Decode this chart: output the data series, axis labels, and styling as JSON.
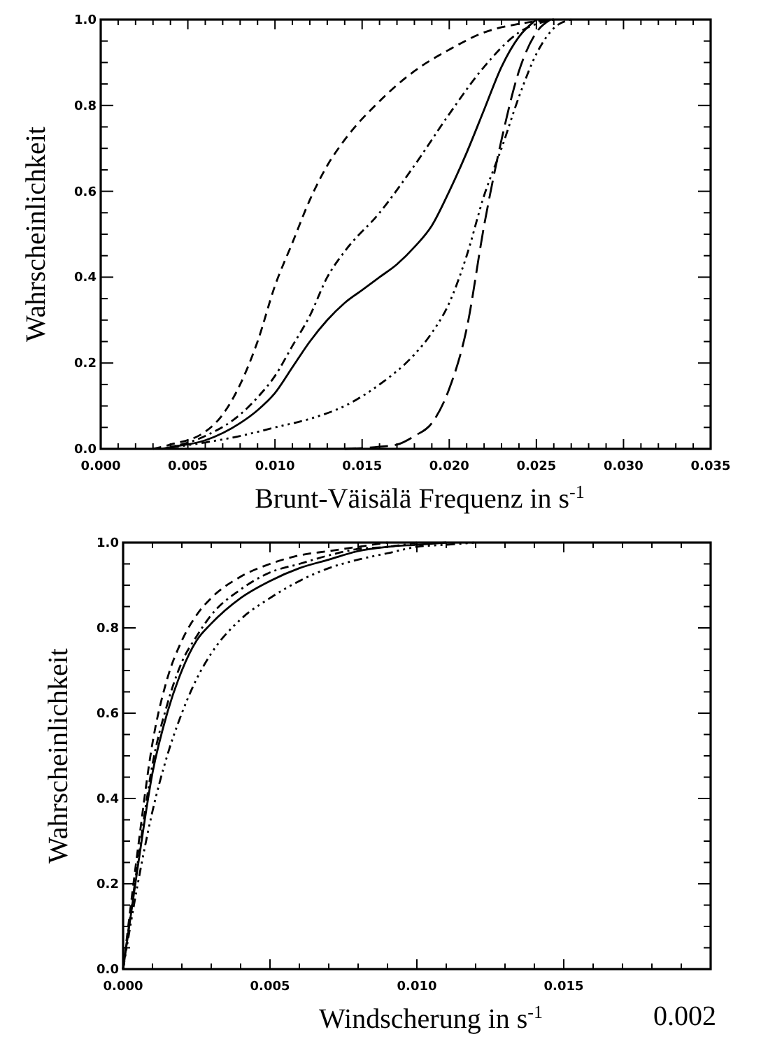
{
  "chart_data": [
    {
      "type": "line",
      "xlabel": "Brunt-Väisälä Frequenz in s$^{-1}$",
      "ylabel": "Wahrscheinlichkeit",
      "xlim": [
        0,
        0.035
      ],
      "ylim": [
        0,
        1
      ],
      "xticks": [
        {
          "value": 0,
          "label": "0.000"
        },
        {
          "value": 0.001,
          "label": null
        },
        {
          "value": 0.002,
          "label": null
        },
        {
          "value": 0.003,
          "label": null
        },
        {
          "value": 0.004,
          "label": null
        },
        {
          "value": 0.005,
          "label": "0.005"
        },
        {
          "value": 0.006,
          "label": null
        },
        {
          "value": 0.007,
          "label": null
        },
        {
          "value": 0.008,
          "label": null
        },
        {
          "value": 0.009,
          "label": null
        },
        {
          "value": 0.01,
          "label": "0.010"
        },
        {
          "value": 0.011,
          "label": null
        },
        {
          "value": 0.012,
          "label": null
        },
        {
          "value": 0.013,
          "label": null
        },
        {
          "value": 0.014,
          "label": null
        },
        {
          "value": 0.015,
          "label": "0.015"
        },
        {
          "value": 0.016,
          "label": null
        },
        {
          "value": 0.017,
          "label": null
        },
        {
          "value": 0.018,
          "label": null
        },
        {
          "value": 0.019,
          "label": null
        },
        {
          "value": 0.02,
          "label": "0.020"
        },
        {
          "value": 0.021,
          "label": null
        },
        {
          "value": 0.022,
          "label": null
        },
        {
          "value": 0.023,
          "label": null
        },
        {
          "value": 0.024,
          "label": null
        },
        {
          "value": 0.025,
          "label": "0.025"
        },
        {
          "value": 0.026,
          "label": null
        },
        {
          "value": 0.027,
          "label": null
        },
        {
          "value": 0.028,
          "label": null
        },
        {
          "value": 0.029,
          "label": null
        },
        {
          "value": 0.03,
          "label": "0.030"
        },
        {
          "value": 0.031,
          "label": null
        },
        {
          "value": 0.032,
          "label": null
        },
        {
          "value": 0.033,
          "label": null
        },
        {
          "value": 0.034,
          "label": null
        },
        {
          "value": 0.035,
          "label": "0.035"
        }
      ],
      "yticks": [
        {
          "value": 0,
          "label": "0.0"
        },
        {
          "value": 0.05,
          "label": null
        },
        {
          "value": 0.1,
          "label": null
        },
        {
          "value": 0.15,
          "label": null
        },
        {
          "value": 0.2,
          "label": "0.2"
        },
        {
          "value": 0.25,
          "label": null
        },
        {
          "value": 0.3,
          "label": null
        },
        {
          "value": 0.35,
          "label": null
        },
        {
          "value": 0.4,
          "label": "0.4"
        },
        {
          "value": 0.45,
          "label": null
        },
        {
          "value": 0.5,
          "label": null
        },
        {
          "value": 0.55,
          "label": null
        },
        {
          "value": 0.6,
          "label": "0.6"
        },
        {
          "value": 0.65,
          "label": null
        },
        {
          "value": 0.7,
          "label": null
        },
        {
          "value": 0.75,
          "label": null
        },
        {
          "value": 0.8,
          "label": "0.8"
        },
        {
          "value": 0.85,
          "label": null
        },
        {
          "value": 0.9,
          "label": null
        },
        {
          "value": 0.95,
          "label": null
        },
        {
          "value": 1,
          "label": "1.0"
        }
      ],
      "grid": false,
      "marker": "none",
      "series": [
        {
          "color": "#000000",
          "line_style": "dashed",
          "x": [
            0.003,
            0.004,
            0.006,
            0.007,
            0.008,
            0.009,
            0.01,
            0.011,
            0.012,
            0.013,
            0.014,
            0.016,
            0.018,
            0.02,
            0.022,
            0.024,
            0.026
          ],
          "values": [
            0,
            0.01,
            0.04,
            0.08,
            0.15,
            0.25,
            0.38,
            0.48,
            0.58,
            0.66,
            0.72,
            0.81,
            0.88,
            0.93,
            0.97,
            0.99,
            1
          ]
        },
        {
          "color": "#000000",
          "line_style": "dashdot",
          "x": [
            0.0035,
            0.006,
            0.008,
            0.009,
            0.01,
            0.011,
            0.012,
            0.013,
            0.014,
            0.016,
            0.018,
            0.02,
            0.022,
            0.024,
            0.026
          ],
          "values": [
            0,
            0.03,
            0.08,
            0.12,
            0.17,
            0.24,
            0.31,
            0.4,
            0.46,
            0.55,
            0.66,
            0.78,
            0.89,
            0.97,
            1
          ]
        },
        {
          "color": "#000000",
          "line_style": "solid",
          "x": [
            0.004,
            0.006,
            0.008,
            0.009,
            0.01,
            0.011,
            0.012,
            0.013,
            0.014,
            0.015,
            0.016,
            0.017,
            0.018,
            0.019,
            0.02,
            0.021,
            0.022,
            0.023,
            0.024,
            0.025
          ],
          "values": [
            0.005,
            0.02,
            0.06,
            0.09,
            0.13,
            0.19,
            0.25,
            0.3,
            0.34,
            0.37,
            0.4,
            0.43,
            0.47,
            0.52,
            0.6,
            0.69,
            0.79,
            0.89,
            0.96,
            1
          ]
        },
        {
          "color": "#000000",
          "line_style": "dashdotdotdot",
          "x": [
            0.004,
            0.006,
            0.008,
            0.01,
            0.012,
            0.014,
            0.016,
            0.018,
            0.019,
            0.02,
            0.021,
            0.022,
            0.023,
            0.024,
            0.025,
            0.026,
            0.027
          ],
          "values": [
            0.003,
            0.015,
            0.03,
            0.05,
            0.07,
            0.1,
            0.15,
            0.22,
            0.27,
            0.34,
            0.45,
            0.59,
            0.7,
            0.82,
            0.92,
            0.98,
            1
          ]
        },
        {
          "color": "#000000",
          "line_style": "longdash",
          "x": [
            0.014,
            0.016,
            0.017,
            0.018,
            0.019,
            0.02,
            0.021,
            0.022,
            0.023,
            0.024,
            0.025,
            0.0258
          ],
          "values": [
            0,
            0.005,
            0.01,
            0.03,
            0.06,
            0.14,
            0.28,
            0.52,
            0.72,
            0.88,
            0.97,
            1
          ]
        }
      ]
    },
    {
      "type": "line",
      "xlabel": "Windscherung in s$^{-1}$",
      "ylabel": "Wahrscheinlichkeit",
      "xlim": [
        0,
        0.02
      ],
      "ylim": [
        0,
        1
      ],
      "annotations": [
        "0.002"
      ],
      "xticks": [
        {
          "value": 0,
          "label": "0.000"
        },
        {
          "value": 0.001,
          "label": null
        },
        {
          "value": 0.002,
          "label": null
        },
        {
          "value": 0.003,
          "label": null
        },
        {
          "value": 0.004,
          "label": null
        },
        {
          "value": 0.005,
          "label": "0.005"
        },
        {
          "value": 0.006,
          "label": null
        },
        {
          "value": 0.007,
          "label": null
        },
        {
          "value": 0.008,
          "label": null
        },
        {
          "value": 0.009,
          "label": null
        },
        {
          "value": 0.01,
          "label": "0.010"
        },
        {
          "value": 0.011,
          "label": null
        },
        {
          "value": 0.012,
          "label": null
        },
        {
          "value": 0.013,
          "label": null
        },
        {
          "value": 0.014,
          "label": null
        },
        {
          "value": 0.015,
          "label": "0.015"
        },
        {
          "value": 0.016,
          "label": null
        },
        {
          "value": 0.017,
          "label": null
        },
        {
          "value": 0.018,
          "label": null
        },
        {
          "value": 0.019,
          "label": null
        },
        {
          "value": 0.02,
          "label": null
        }
      ],
      "yticks": [
        {
          "value": 0,
          "label": "0.0"
        },
        {
          "value": 0.05,
          "label": null
        },
        {
          "value": 0.1,
          "label": null
        },
        {
          "value": 0.15,
          "label": null
        },
        {
          "value": 0.2,
          "label": "0.2"
        },
        {
          "value": 0.25,
          "label": null
        },
        {
          "value": 0.3,
          "label": null
        },
        {
          "value": 0.35,
          "label": null
        },
        {
          "value": 0.4,
          "label": "0.4"
        },
        {
          "value": 0.45,
          "label": null
        },
        {
          "value": 0.5,
          "label": null
        },
        {
          "value": 0.55,
          "label": null
        },
        {
          "value": 0.6,
          "label": "0.6"
        },
        {
          "value": 0.65,
          "label": null
        },
        {
          "value": 0.7,
          "label": null
        },
        {
          "value": 0.75,
          "label": null
        },
        {
          "value": 0.8,
          "label": "0.8"
        },
        {
          "value": 0.85,
          "label": null
        },
        {
          "value": 0.9,
          "label": null
        },
        {
          "value": 0.95,
          "label": null
        },
        {
          "value": 1,
          "label": "1.0"
        }
      ],
      "grid": false,
      "marker": "none",
      "series": [
        {
          "color": "#000000",
          "line_style": "dashed",
          "x": [
            0,
            0.0005,
            0.001,
            0.0015,
            0.002,
            0.0025,
            0.003,
            0.004,
            0.005,
            0.006,
            0.007,
            0.008,
            0.009
          ],
          "values": [
            0,
            0.28,
            0.53,
            0.68,
            0.77,
            0.83,
            0.87,
            0.92,
            0.95,
            0.97,
            0.98,
            0.99,
            1
          ]
        },
        {
          "color": "#000000",
          "line_style": "dashdot",
          "x": [
            0,
            0.0005,
            0.001,
            0.0015,
            0.002,
            0.0025,
            0.003,
            0.004,
            0.005,
            0.006,
            0.007,
            0.008,
            0.009,
            0.01
          ],
          "values": [
            0,
            0.25,
            0.48,
            0.62,
            0.72,
            0.78,
            0.83,
            0.89,
            0.93,
            0.95,
            0.97,
            0.985,
            0.99,
            1
          ]
        },
        {
          "color": "#000000",
          "line_style": "solid",
          "x": [
            0,
            0.0005,
            0.001,
            0.0015,
            0.002,
            0.0025,
            0.003,
            0.004,
            0.005,
            0.006,
            0.007,
            0.008,
            0.009,
            0.01,
            0.011
          ],
          "values": [
            0,
            0.24,
            0.46,
            0.6,
            0.7,
            0.77,
            0.81,
            0.87,
            0.91,
            0.94,
            0.96,
            0.98,
            0.99,
            0.995,
            1
          ]
        },
        {
          "color": "#000000",
          "line_style": "dashdotdotdot",
          "x": [
            0,
            0.0005,
            0.001,
            0.0015,
            0.002,
            0.0025,
            0.003,
            0.004,
            0.005,
            0.006,
            0.007,
            0.008,
            0.009,
            0.01,
            0.011,
            0.012
          ],
          "values": [
            0,
            0.2,
            0.37,
            0.5,
            0.6,
            0.68,
            0.74,
            0.82,
            0.87,
            0.91,
            0.94,
            0.96,
            0.975,
            0.99,
            0.995,
            1
          ]
        }
      ]
    }
  ]
}
